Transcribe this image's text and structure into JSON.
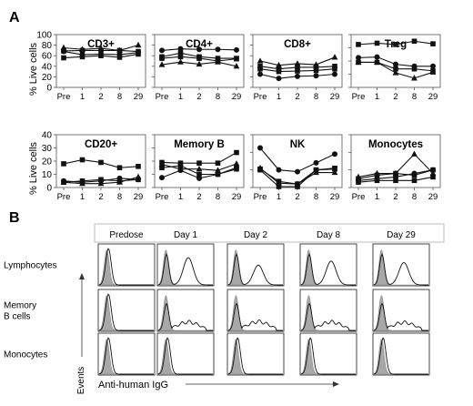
{
  "panel_a": {
    "label": "A",
    "y_axis_label": "% Live cells",
    "charts": [
      {
        "type": "line",
        "title": "CD3+",
        "categories": [
          "Pre",
          "1",
          "2",
          "8",
          "29"
        ],
        "ylim": [
          0,
          100
        ],
        "yticks": [
          0,
          20,
          40,
          60,
          80,
          100
        ],
        "series": [
          {
            "marker": "triangle",
            "values": [
              75,
              72,
              74,
              70,
              80
            ]
          },
          {
            "marker": "square",
            "values": [
              69,
              70,
              70,
              70,
              68
            ]
          },
          {
            "marker": "circle",
            "values": [
              68,
              62,
              63,
              62,
              66
            ]
          },
          {
            "marker": "square",
            "values": [
              56,
              58,
              60,
              57,
              63
            ]
          }
        ]
      },
      {
        "type": "line",
        "title": "CD4+",
        "categories": [
          "Pre",
          "1",
          "2",
          "8",
          "29"
        ],
        "ylim": [
          0,
          100
        ],
        "yticks": [
          0,
          20,
          40,
          60,
          80,
          100
        ],
        "series": [
          {
            "marker": "circle",
            "values": [
              70,
              73,
              72,
              72,
              71
            ]
          },
          {
            "marker": "square",
            "values": [
              58,
              65,
              58,
              55,
              55
            ]
          },
          {
            "marker": "square",
            "values": [
              55,
              58,
              55,
              50,
              54
            ]
          },
          {
            "marker": "triangle",
            "values": [
              43,
              48,
              44,
              48,
              40
            ]
          }
        ]
      },
      {
        "type": "line",
        "title": "CD8+",
        "categories": [
          "Pre",
          "1",
          "2",
          "8",
          "29"
        ],
        "ylim": [
          0,
          100
        ],
        "yticks": [
          0,
          20,
          40,
          60,
          80,
          100
        ],
        "series": [
          {
            "marker": "triangle",
            "values": [
              50,
              42,
              45,
              43,
              57
            ]
          },
          {
            "marker": "square",
            "values": [
              40,
              35,
              38,
              38,
              40
            ]
          },
          {
            "marker": "square",
            "values": [
              35,
              30,
              31,
              32,
              35
            ]
          },
          {
            "marker": "circle",
            "values": [
              25,
              17,
              21,
              22,
              25
            ]
          }
        ]
      },
      {
        "type": "line",
        "title": "Treg",
        "categories": [
          "Pre",
          "1",
          "2",
          "8",
          "29"
        ],
        "ylim": [
          0,
          8
        ],
        "yticks": [
          0,
          2,
          4,
          6,
          8
        ],
        "series": [
          {
            "marker": "square",
            "values": [
              6.5,
              6.7,
              6.5,
              7.0,
              6.6
            ]
          },
          {
            "marker": "circle",
            "values": [
              4.5,
              4.6,
              3.5,
              3.2,
              3.2
            ]
          },
          {
            "marker": "square",
            "values": [
              3.8,
              3.8,
              2.8,
              2.8,
              2.5
            ]
          },
          {
            "marker": "triangle",
            "values": [
              3.8,
              3.8,
              2.2,
              1.4,
              2.3
            ]
          }
        ]
      },
      {
        "type": "line",
        "title": "CD20+",
        "categories": [
          "Pre",
          "1",
          "2",
          "8",
          "29"
        ],
        "ylim": [
          0,
          40
        ],
        "yticks": [
          0,
          10,
          20,
          30,
          40
        ],
        "series": [
          {
            "marker": "square",
            "values": [
              18,
              21,
              19,
              15,
              16
            ]
          },
          {
            "marker": "circle",
            "values": [
              5,
              4,
              5,
              7,
              6
            ]
          },
          {
            "marker": "triangle",
            "values": [
              4,
              3,
              3,
              4,
              8
            ]
          },
          {
            "marker": "square",
            "values": [
              4,
              5,
              6,
              5,
              6
            ]
          }
        ]
      },
      {
        "type": "line",
        "title": "Memory B",
        "categories": [
          "Pre",
          "1",
          "2",
          "8",
          "29"
        ],
        "ylim": [
          0,
          80
        ],
        "yticks": [
          0,
          20,
          40,
          60,
          80
        ],
        "series": [
          {
            "marker": "square",
            "values": [
              38,
              37,
              37,
              37,
              53
            ]
          },
          {
            "marker": "triangle",
            "values": [
              35,
              28,
              28,
              26,
              36
            ]
          },
          {
            "marker": "square",
            "values": [
              30,
              33,
              20,
              20,
              28
            ]
          },
          {
            "marker": "circle",
            "values": [
              15,
              26,
              14,
              20,
              30
            ]
          }
        ]
      },
      {
        "type": "line",
        "title": "NK",
        "categories": [
          "Pre",
          "1",
          "2",
          "8",
          "29"
        ],
        "ylim": [
          0,
          60
        ],
        "yticks": [
          0,
          20,
          40,
          60
        ],
        "series": [
          {
            "marker": "circle",
            "values": [
              45,
              20,
              18,
              28,
              38
            ]
          },
          {
            "marker": "triangle",
            "values": [
              22,
              5,
              4,
              17,
              17
            ]
          },
          {
            "marker": "square",
            "values": [
              21,
              7,
              4,
              20,
              21
            ]
          },
          {
            "marker": "square",
            "values": [
              20,
              1,
              1,
              20,
              22
            ]
          }
        ]
      },
      {
        "type": "line",
        "title": "Monocytes",
        "categories": [
          "Pre",
          "1",
          "2",
          "8",
          "29"
        ],
        "ylim": [
          0,
          30
        ],
        "yticks": [
          0,
          10,
          20,
          30
        ],
        "series": [
          {
            "marker": "triangle",
            "values": [
              6,
              8,
              8,
              19,
              8
            ]
          },
          {
            "marker": "square",
            "values": [
              5,
              7,
              8,
              7,
              10
            ]
          },
          {
            "marker": "circle",
            "values": [
              4,
              5,
              6,
              8,
              10
            ]
          },
          {
            "marker": "square",
            "values": [
              3,
              4,
              4,
              4,
              6
            ]
          }
        ]
      }
    ]
  },
  "panel_b": {
    "label": "B",
    "columns": [
      "Predose",
      "Day 1",
      "Day 2",
      "Day 8",
      "Day 29"
    ],
    "rows": [
      "Lymphocytes",
      "Memory\nB cells",
      "Monocytes"
    ],
    "y_axis_label": "Events",
    "x_axis_label": "Anti-human IgG",
    "shift_level": [
      [
        0,
        0.55,
        0.4,
        0.48,
        0.45
      ],
      [
        0,
        0.4,
        0.42,
        0.4,
        0.38
      ],
      [
        0,
        0.05,
        0.05,
        0.05,
        0.05
      ]
    ],
    "colors": {
      "filled": "#a8a8a8",
      "line": "#111111"
    }
  }
}
